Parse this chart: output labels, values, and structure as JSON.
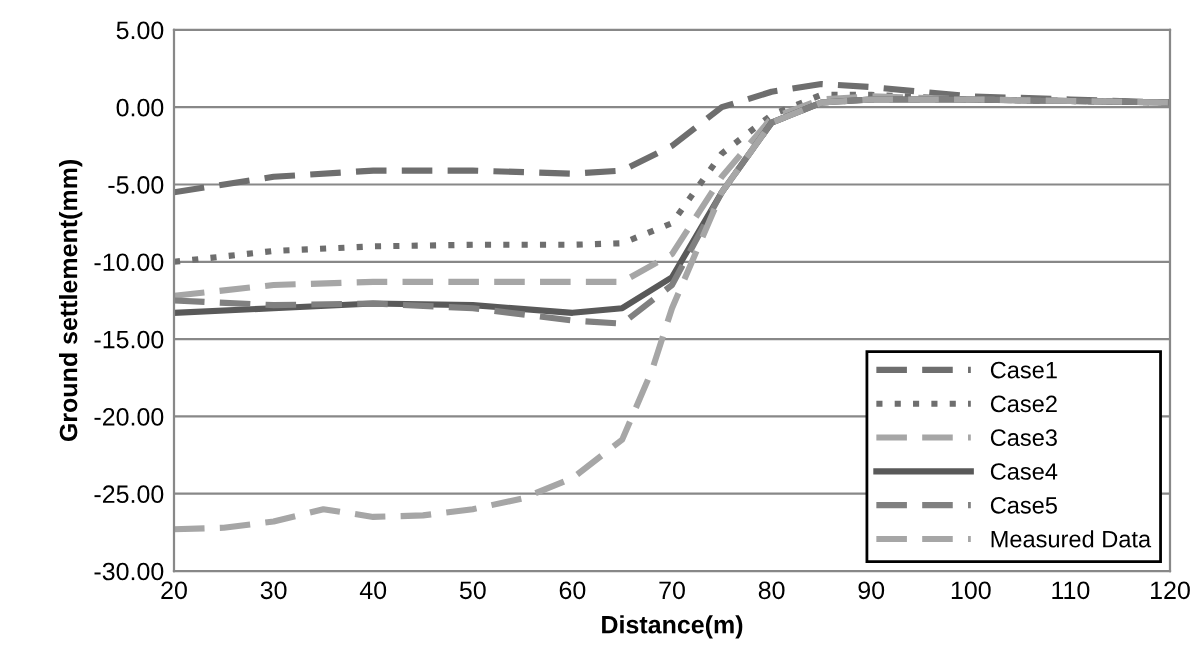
{
  "chart_data": {
    "type": "line",
    "xlabel": "Distance(m)",
    "ylabel": "Ground settlement(mm)",
    "xlim": [
      20,
      120
    ],
    "xticks": [
      20,
      30,
      40,
      50,
      60,
      70,
      80,
      90,
      100,
      110,
      120
    ],
    "ylim": [
      -30,
      5
    ],
    "yticks": [
      {
        "value": -30,
        "label": "-30.00"
      },
      {
        "value": -25,
        "label": "-25.00"
      },
      {
        "value": -20,
        "label": "-20.00"
      },
      {
        "value": -15,
        "label": "-15.00"
      },
      {
        "value": -10,
        "label": "-10.00"
      },
      {
        "value": -5,
        "label": "-5.00"
      },
      {
        "value": 0,
        "label": "0.00"
      },
      {
        "value": 5,
        "label": "5.00"
      }
    ],
    "grid": "y",
    "legend": "lower right",
    "marker": "none",
    "x": [
      20,
      30,
      40,
      50,
      60,
      65,
      70,
      75,
      80,
      85,
      90,
      100,
      110,
      120
    ],
    "series": [
      {
        "name": "Case1",
        "color": "#6e6e6e",
        "line_style": "dashed",
        "values": [
          -5.5,
          -4.5,
          -4.1,
          -4.1,
          -4.3,
          -4.1,
          -2.5,
          0,
          1.0,
          1.5,
          1.3,
          0.7,
          0.5,
          0.3
        ]
      },
      {
        "name": "Case2",
        "color": "#6e6e6e",
        "line_style": "dotted",
        "values": [
          -10,
          -9.3,
          -9,
          -8.9,
          -8.9,
          -8.8,
          -7.5,
          -3,
          -0.5,
          0.8,
          0.8,
          0.5,
          0.4,
          0.3
        ]
      },
      {
        "name": "Case3",
        "color": "#a6a6a6",
        "line_style": "dashed",
        "values": [
          -12.2,
          -11.5,
          -11.3,
          -11.3,
          -11.3,
          -11.3,
          -9.5,
          -4.5,
          -0.7,
          0.5,
          0.7,
          0.5,
          0.4,
          0.3
        ]
      },
      {
        "name": "Case4",
        "color": "#595959",
        "line_style": "solid",
        "values": [
          -13.3,
          -13,
          -12.7,
          -12.8,
          -13.3,
          -13,
          -11,
          -5.5,
          -1.0,
          0.3,
          0.5,
          0.5,
          0.4,
          0.3
        ]
      },
      {
        "name": "Case5",
        "color": "#808080",
        "line_style": "dashed",
        "values": [
          -12.5,
          -12.8,
          -12.7,
          -13,
          -13.8,
          -14,
          -11.5,
          -5.5,
          -1,
          0.3,
          0.5,
          0.5,
          0.4,
          0.3
        ]
      },
      {
        "name": "Measured Data",
        "color": "#a6a6a6",
        "line_style": "dashed",
        "x": [
          20,
          25,
          30,
          35,
          40,
          45,
          50,
          55,
          60,
          65,
          68,
          70,
          75,
          80,
          85,
          90,
          100,
          110,
          120
        ],
        "values": [
          -27.3,
          -27.2,
          -26.8,
          -26,
          -26.5,
          -26.4,
          -26,
          -25.3,
          -24,
          -21.5,
          -17,
          -13,
          -5.5,
          -1,
          0.3,
          0.5,
          0.5,
          0.4,
          0.3
        ]
      }
    ]
  }
}
